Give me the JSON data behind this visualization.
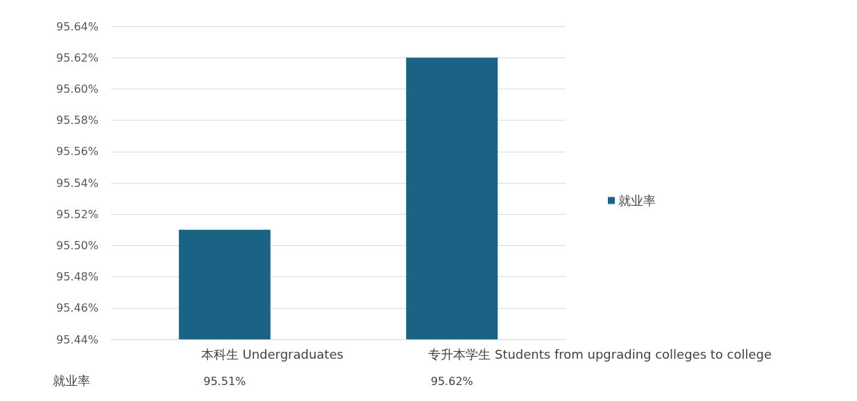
{
  "chart_data": {
    "type": "bar",
    "categories": [
      "本科生 Undergraduates",
      "专升本学生 Students from upgrading colleges to college"
    ],
    "series": [
      {
        "name": "就业率",
        "color": "#1a6385",
        "values": [
          95.51,
          95.62
        ],
        "value_labels": [
          "95.51%",
          "95.62%"
        ]
      }
    ],
    "ylim": [
      95.44,
      95.64
    ],
    "yticks": [
      {
        "value": 95.44,
        "label": "95.44%"
      },
      {
        "value": 95.46,
        "label": "95.46%"
      },
      {
        "value": 95.48,
        "label": "95.48%"
      },
      {
        "value": 95.5,
        "label": "95.50%"
      },
      {
        "value": 95.52,
        "label": "95.52%"
      },
      {
        "value": 95.54,
        "label": "95.54%"
      },
      {
        "value": 95.56,
        "label": "95.56%"
      },
      {
        "value": 95.58,
        "label": "95.58%"
      },
      {
        "value": 95.6,
        "label": "95.60%"
      },
      {
        "value": 95.62,
        "label": "95.62%"
      },
      {
        "value": 95.64,
        "label": "95.64%"
      }
    ],
    "grid": "y",
    "legend": "right"
  }
}
